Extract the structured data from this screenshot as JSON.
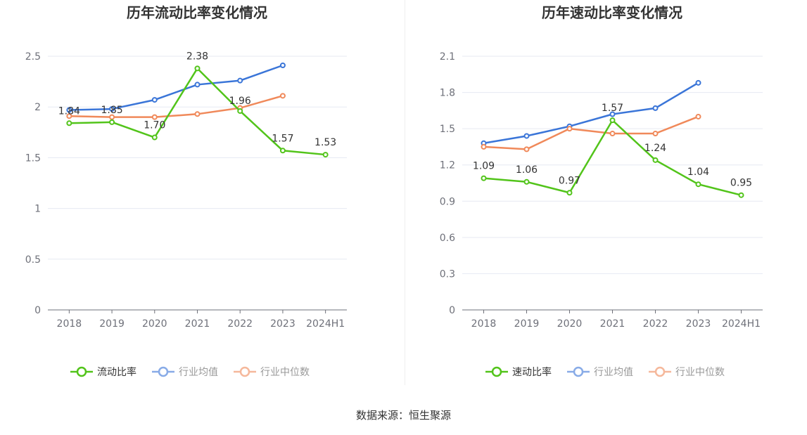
{
  "source_note": "数据来源：恒生聚源",
  "colors": {
    "primary": "#52c41a",
    "mean": "#3a75d8",
    "median": "#f0895a"
  },
  "chart_data": [
    {
      "type": "line",
      "title": "历年流动比率变化情况",
      "categories": [
        "2018",
        "2019",
        "2020",
        "2021",
        "2022",
        "2023",
        "2024H1"
      ],
      "ylim": [
        0,
        2.5
      ],
      "yticks": [
        "0",
        "0.5",
        "1",
        "1.5",
        "2",
        "2.5"
      ],
      "yticks_values": [
        0,
        0.5,
        1,
        1.5,
        2,
        2.5
      ],
      "grid": true,
      "legend_position": "bottom",
      "series": [
        {
          "name": "流动比率",
          "color": "#52c41a",
          "labels": true,
          "values": [
            1.84,
            1.85,
            1.7,
            2.38,
            1.96,
            1.57,
            1.53
          ],
          "label_text": [
            "1.84",
            "1.85",
            "1.70",
            "2.38",
            "1.96",
            "1.57",
            "1.53"
          ]
        },
        {
          "name": "行业均值",
          "color": "#3a75d8",
          "labels": false,
          "values": [
            1.97,
            1.98,
            2.07,
            2.22,
            2.26,
            2.41,
            null
          ]
        },
        {
          "name": "行业中位数",
          "color": "#f0895a",
          "labels": false,
          "values": [
            1.91,
            1.9,
            1.9,
            1.93,
            1.99,
            2.11,
            null
          ]
        }
      ]
    },
    {
      "type": "line",
      "title": "历年速动比率变化情况",
      "categories": [
        "2018",
        "2019",
        "2020",
        "2021",
        "2022",
        "2023",
        "2024H1"
      ],
      "ylim": [
        0,
        2.1
      ],
      "yticks": [
        "0",
        "0.3",
        "0.6",
        "0.9",
        "1.2",
        "1.5",
        "1.8",
        "2.1"
      ],
      "yticks_values": [
        0,
        0.3,
        0.6,
        0.9,
        1.2,
        1.5,
        1.8,
        2.1
      ],
      "grid": true,
      "legend_position": "bottom",
      "series": [
        {
          "name": "速动比率",
          "color": "#52c41a",
          "labels": true,
          "values": [
            1.09,
            1.06,
            0.97,
            1.57,
            1.24,
            1.04,
            0.95
          ],
          "label_text": [
            "1.09",
            "1.06",
            "0.97",
            "1.57",
            "1.24",
            "1.04",
            "0.95"
          ]
        },
        {
          "name": "行业均值",
          "color": "#3a75d8",
          "labels": false,
          "values": [
            1.38,
            1.44,
            1.52,
            1.62,
            1.67,
            1.88,
            null
          ]
        },
        {
          "name": "行业中位数",
          "color": "#f0895a",
          "labels": false,
          "values": [
            1.35,
            1.33,
            1.5,
            1.46,
            1.46,
            1.6,
            null
          ]
        }
      ]
    }
  ]
}
